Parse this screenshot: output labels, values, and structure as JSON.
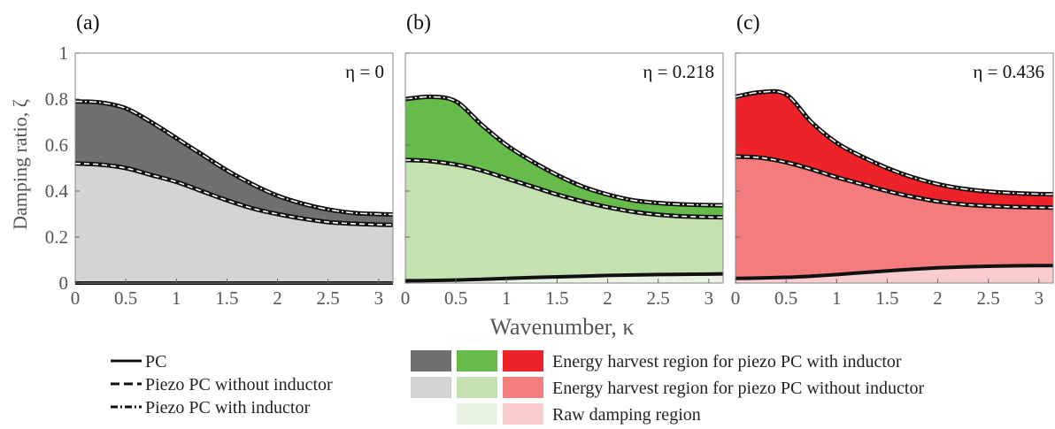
{
  "chart_data": {
    "type": "area",
    "ylabel": "Damping ratio, ζ",
    "xlabel": "Wavenumber, κ",
    "xlim": [
      0,
      3.1416
    ],
    "ylim": [
      0,
      1
    ],
    "xticks": [
      "0",
      "0.5",
      "1",
      "1.5",
      "2",
      "2.5",
      "3"
    ],
    "yticks": [
      "0",
      "0.2",
      "0.4",
      "0.6",
      "0.8",
      "1"
    ],
    "x": [
      0,
      0.25,
      0.5,
      0.75,
      1.0,
      1.25,
      1.5,
      1.75,
      2.0,
      2.25,
      2.5,
      2.75,
      3.0,
      3.1416
    ],
    "panels": [
      {
        "letter": "(a)",
        "eta_label": "η = 0",
        "colors": {
          "inductor_region": "#6e6f71",
          "no_inductor_region": "#d3d4d6",
          "raw_region": "#ffffff"
        },
        "series": [
          {
            "name": "PC",
            "values": [
              0.0,
              0.0,
              0.0,
              0.0,
              0.0,
              0.0,
              0.0,
              0.0,
              0.0,
              0.0,
              0.0,
              0.0,
              0.0,
              0.0
            ]
          },
          {
            "name": "Piezo PC without inductor",
            "values": [
              0.52,
              0.515,
              0.5,
              0.47,
              0.44,
              0.4,
              0.36,
              0.325,
              0.3,
              0.28,
              0.265,
              0.258,
              0.254,
              0.253
            ]
          },
          {
            "name": "Piezo PC with inductor",
            "values": [
              0.79,
              0.785,
              0.76,
              0.7,
              0.63,
              0.56,
              0.49,
              0.43,
              0.38,
              0.345,
              0.32,
              0.305,
              0.3,
              0.298
            ]
          }
        ]
      },
      {
        "letter": "(b)",
        "eta_label": "η = 0.218",
        "colors": {
          "inductor_region": "#66bb4a",
          "no_inductor_region": "#c4e1b2",
          "raw_region": "#e9f3e2"
        },
        "series": [
          {
            "name": "PC",
            "values": [
              0.01,
              0.011,
              0.013,
              0.016,
              0.02,
              0.024,
              0.027,
              0.03,
              0.033,
              0.035,
              0.037,
              0.038,
              0.039,
              0.04
            ]
          },
          {
            "name": "Piezo PC without inductor",
            "values": [
              0.535,
              0.53,
              0.515,
              0.49,
              0.455,
              0.42,
              0.385,
              0.355,
              0.33,
              0.31,
              0.297,
              0.29,
              0.287,
              0.286
            ]
          },
          {
            "name": "Piezo PC with inductor",
            "values": [
              0.8,
              0.81,
              0.79,
              0.69,
              0.6,
              0.53,
              0.47,
              0.42,
              0.385,
              0.36,
              0.348,
              0.342,
              0.339,
              0.338
            ]
          }
        ]
      },
      {
        "letter": "(c)",
        "eta_label": "η = 0.436",
        "colors": {
          "inductor_region": "#ee2229",
          "no_inductor_region": "#f27c7e",
          "raw_region": "#f8cccd"
        },
        "series": [
          {
            "name": "PC",
            "values": [
              0.02,
              0.022,
              0.025,
              0.03,
              0.037,
              0.045,
              0.053,
              0.06,
              0.066,
              0.07,
              0.073,
              0.075,
              0.076,
              0.076
            ]
          },
          {
            "name": "Piezo PC without inductor",
            "values": [
              0.55,
              0.545,
              0.525,
              0.495,
              0.46,
              0.43,
              0.4,
              0.375,
              0.355,
              0.342,
              0.335,
              0.331,
              0.329,
              0.328
            ]
          },
          {
            "name": "Piezo PC with inductor",
            "values": [
              0.81,
              0.83,
              0.82,
              0.7,
              0.61,
              0.55,
              0.5,
              0.46,
              0.43,
              0.41,
              0.398,
              0.391,
              0.387,
              0.386
            ]
          }
        ]
      }
    ],
    "legend_lines": [
      {
        "label": "PC",
        "style": "solid"
      },
      {
        "label": "Piezo PC without inductor",
        "style": "dashed"
      },
      {
        "label": "Piezo PC with inductor",
        "style": "dashdot"
      }
    ],
    "legend_regions": [
      {
        "label": "Energy harvest region for piezo PC with inductor",
        "swatches": [
          "#6e6f71",
          "#66bb4a",
          "#ee2229"
        ]
      },
      {
        "label": "Energy harvest region for piezo PC without inductor",
        "swatches": [
          "#d3d4d6",
          "#c4e1b2",
          "#f27c7e"
        ]
      },
      {
        "label": "Raw damping region",
        "swatches": [
          "#e9f3e2",
          "#f8cccd"
        ]
      }
    ]
  }
}
